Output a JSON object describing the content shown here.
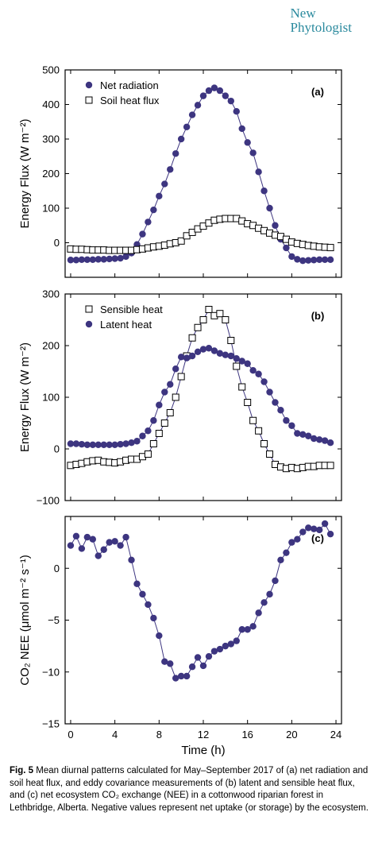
{
  "journal": {
    "line1": "New",
    "line2": "Phytologist",
    "color": "#2b8a9e"
  },
  "caption": {
    "label": "Fig. 5",
    "text": "Mean diurnal patterns calculated for May–September 2017 of (a) net radiation and soil heat flux, and eddy covariance measurements of (b) latent and sensible heat flux, and (c) net ecosystem CO₂ exchange (NEE) in a cottonwood riparian forest in Lethbridge, Alberta. Negative values represent net uptake (or storage) by the ecosystem."
  },
  "colors": {
    "marker": "#3d3580",
    "line": "#3d3580",
    "axis": "#000000"
  },
  "chart_data": [
    {
      "type": "line",
      "panel_label": "(a)",
      "ylabel": "Energy Flux (W m⁻²)",
      "ylim": [
        -100,
        500
      ],
      "yticks": [
        0,
        100,
        200,
        300,
        400,
        500
      ],
      "xlim": [
        -0.5,
        24.5
      ],
      "legend_position": "top-left",
      "x": [
        0,
        0.5,
        1,
        1.5,
        2,
        2.5,
        3,
        3.5,
        4,
        4.5,
        5,
        5.5,
        6,
        6.5,
        7,
        7.5,
        8,
        8.5,
        9,
        9.5,
        10,
        10.5,
        11,
        11.5,
        12,
        12.5,
        13,
        13.5,
        14,
        14.5,
        15,
        15.5,
        16,
        16.5,
        17,
        17.5,
        18,
        18.5,
        19,
        19.5,
        20,
        20.5,
        21,
        21.5,
        22,
        22.5,
        23,
        23.5
      ],
      "series": [
        {
          "name": "Net radiation",
          "marker": "filled-circle",
          "values": [
            -50,
            -50,
            -49,
            -49,
            -49,
            -48,
            -48,
            -47,
            -46,
            -45,
            -40,
            -30,
            -5,
            25,
            60,
            95,
            135,
            170,
            212,
            258,
            300,
            335,
            370,
            398,
            425,
            440,
            448,
            440,
            425,
            410,
            380,
            330,
            290,
            260,
            205,
            150,
            100,
            50,
            10,
            -15,
            -40,
            -48,
            -52,
            -51,
            -50,
            -49,
            -49,
            -49
          ]
        },
        {
          "name": "Soil heat flux",
          "marker": "open-square",
          "values": [
            -18,
            -19,
            -19,
            -20,
            -21,
            -21,
            -21,
            -22,
            -22,
            -22,
            -22,
            -22,
            -20,
            -18,
            -15,
            -12,
            -10,
            -7,
            -3,
            0,
            5,
            20,
            30,
            40,
            48,
            57,
            65,
            68,
            70,
            70,
            70,
            63,
            55,
            50,
            42,
            35,
            28,
            22,
            18,
            10,
            2,
            -2,
            -5,
            -8,
            -10,
            -12,
            -13,
            -14
          ]
        }
      ]
    },
    {
      "type": "line",
      "panel_label": "(b)",
      "ylabel": "Energy Flux (W m⁻²)",
      "ylim": [
        -100,
        300
      ],
      "yticks": [
        -100,
        0,
        100,
        200,
        300
      ],
      "xlim": [
        -0.5,
        24.5
      ],
      "legend_position": "top-left",
      "x": [
        0,
        0.5,
        1,
        1.5,
        2,
        2.5,
        3,
        3.5,
        4,
        4.5,
        5,
        5.5,
        6,
        6.5,
        7,
        7.5,
        8,
        8.5,
        9,
        9.5,
        10,
        10.5,
        11,
        11.5,
        12,
        12.5,
        13,
        13.5,
        14,
        14.5,
        15,
        15.5,
        16,
        16.5,
        17,
        17.5,
        18,
        18.5,
        19,
        19.5,
        20,
        20.5,
        21,
        21.5,
        22,
        22.5,
        23,
        23.5
      ],
      "series": [
        {
          "name": "Sensible heat",
          "marker": "open-square",
          "values": [
            -32,
            -30,
            -28,
            -25,
            -23,
            -22,
            -25,
            -26,
            -27,
            -25,
            -22,
            -20,
            -20,
            -15,
            -10,
            10,
            30,
            50,
            70,
            100,
            140,
            180,
            215,
            235,
            250,
            270,
            258,
            262,
            250,
            210,
            160,
            120,
            90,
            55,
            35,
            10,
            -10,
            -30,
            -35,
            -38,
            -36,
            -38,
            -36,
            -34,
            -34,
            -32,
            -32,
            -32
          ]
        },
        {
          "name": "Latent heat",
          "marker": "filled-circle",
          "values": [
            10,
            10,
            9,
            8,
            8,
            8,
            8,
            8,
            8,
            9,
            10,
            12,
            15,
            25,
            35,
            55,
            85,
            110,
            125,
            155,
            178,
            176,
            180,
            188,
            193,
            195,
            190,
            185,
            182,
            180,
            175,
            170,
            165,
            152,
            145,
            130,
            110,
            90,
            75,
            55,
            45,
            30,
            28,
            25,
            20,
            18,
            16,
            12
          ]
        }
      ]
    },
    {
      "type": "line",
      "panel_label": "(c)",
      "ylabel": "CO₂ NEE (μmol m⁻² s⁻¹)",
      "xlabel": "Time (h)",
      "ylim": [
        -15,
        5
      ],
      "yticks": [
        -15,
        -10,
        -5,
        0
      ],
      "xlim": [
        -0.5,
        24.5
      ],
      "xticks": [
        0,
        4,
        8,
        12,
        16,
        20,
        24
      ],
      "x": [
        0,
        0.5,
        1,
        1.5,
        2,
        2.5,
        3,
        3.5,
        4,
        4.5,
        5,
        5.5,
        6,
        6.5,
        7,
        7.5,
        8,
        8.5,
        9,
        9.5,
        10,
        10.5,
        11,
        11.5,
        12,
        12.5,
        13,
        13.5,
        14,
        14.5,
        15,
        15.5,
        16,
        16.5,
        17,
        17.5,
        18,
        18.5,
        19,
        19.5,
        20,
        20.5,
        21,
        21.5,
        22,
        22.5,
        23,
        23.5
      ],
      "series": [
        {
          "name": "",
          "marker": "filled-circle",
          "values": [
            2.2,
            3.1,
            1.9,
            3.0,
            2.8,
            1.2,
            1.8,
            2.5,
            2.6,
            2.2,
            3.0,
            0.8,
            -1.5,
            -2.5,
            -3.5,
            -4.8,
            -6.5,
            -9.0,
            -9.2,
            -10.6,
            -10.4,
            -10.4,
            -9.5,
            -8.6,
            -9.4,
            -8.5,
            -8.0,
            -7.8,
            -7.5,
            -7.3,
            -7.0,
            -5.9,
            -5.9,
            -5.6,
            -4.3,
            -3.3,
            -2.5,
            -1.2,
            0.8,
            1.5,
            2.5,
            2.8,
            3.5,
            3.9,
            3.8,
            3.7,
            4.3,
            3.3
          ]
        }
      ]
    }
  ]
}
